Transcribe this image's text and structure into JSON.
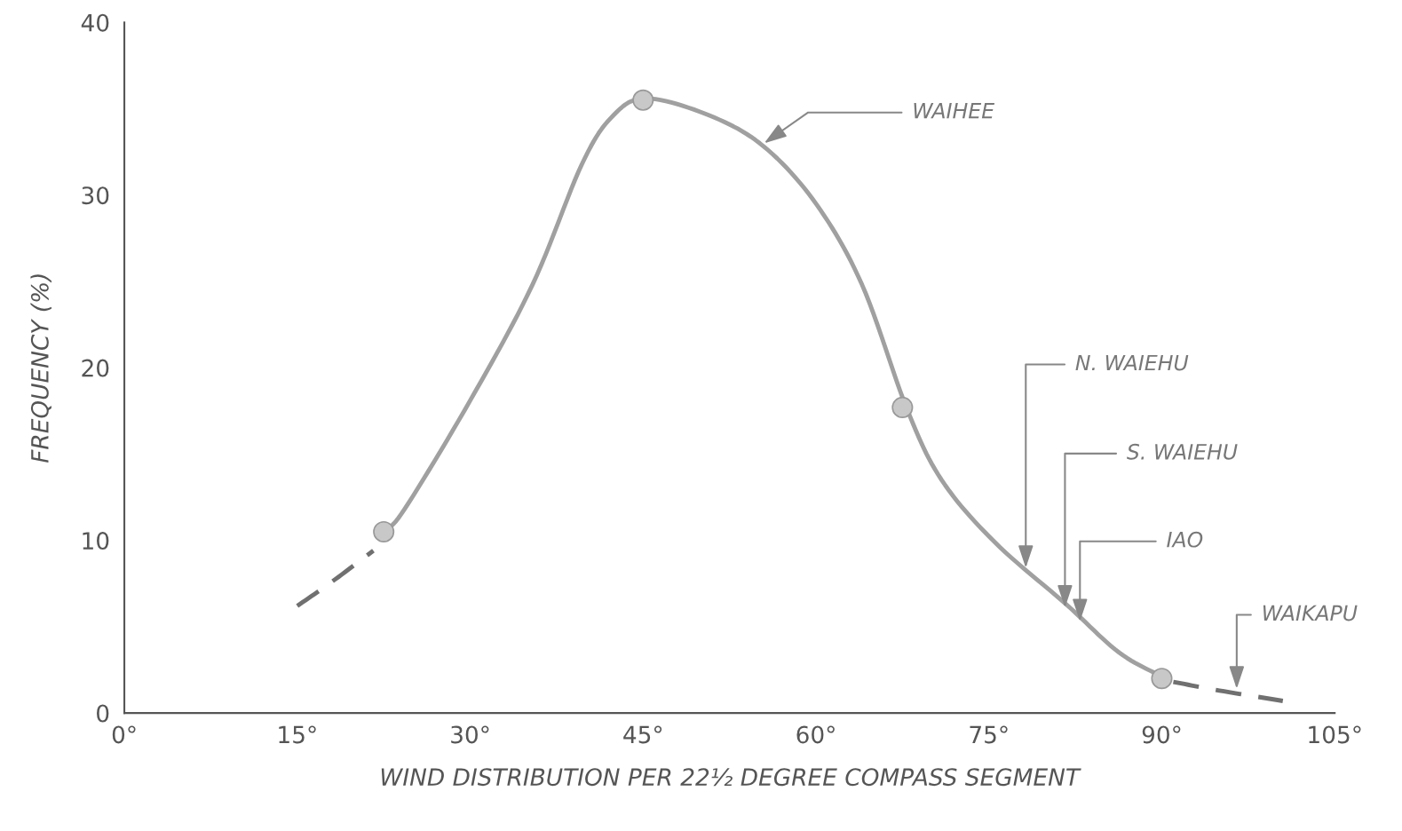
{
  "chart_data": {
    "type": "line",
    "xlabel": "WIND DISTRIBUTION PER 22½ DEGREE COMPASS SEGMENT",
    "ylabel": "FREQUENCY (%)",
    "xlim": [
      0,
      105
    ],
    "xticks": [
      {
        "value": 0,
        "label": "0°"
      },
      {
        "value": 15,
        "label": "15°"
      },
      {
        "value": 30,
        "label": "30°"
      },
      {
        "value": 45,
        "label": "45°"
      },
      {
        "value": 60,
        "label": "60°"
      },
      {
        "value": 75,
        "label": "75°"
      },
      {
        "value": 90,
        "label": "90°"
      },
      {
        "value": 105,
        "label": "105°"
      }
    ],
    "ylim": [
      0,
      40
    ],
    "yticks": [
      0,
      10,
      20,
      30,
      40
    ],
    "grid": false,
    "legend": false,
    "series": [
      {
        "color": "#a0a0a0",
        "line_style": "solid",
        "marker": "none",
        "x": [
          22.5,
          24.3,
          30,
          35.4,
          39.7,
          42.4,
          45.3,
          50.8,
          55.5,
          60,
          64,
          67.9,
          70.9,
          75.5,
          81.7,
          86.3,
          90.3
        ],
        "values": [
          10.5,
          11.8,
          18.1,
          24.8,
          31.8,
          34.6,
          35.6,
          34.6,
          32.8,
          29.5,
          24.8,
          17.6,
          13.5,
          9.9,
          6.3,
          3.5,
          2.0
        ]
      },
      {
        "color": "#707070",
        "line_style": "dashed",
        "marker": "none",
        "x": [
          15,
          18,
          21.6
        ],
        "values": [
          6.2,
          7.6,
          9.4
        ]
      },
      {
        "color": "#707070",
        "line_style": "dashed",
        "marker": "none",
        "x": [
          91,
          95,
          100.5
        ],
        "values": [
          1.8,
          1.3,
          0.7
        ]
      },
      {
        "type": "scatter",
        "color": "#c8c8c8",
        "marker": "circle",
        "x": [
          22.5,
          45,
          67.5,
          90
        ],
        "values": [
          10.5,
          35.5,
          17.7,
          2.0
        ]
      }
    ],
    "annotations": [
      {
        "text": "WAIHEE",
        "x": 55.5,
        "y": 33
      },
      {
        "text": "N. WAIEHU",
        "x": 78.2,
        "y": 8.4
      },
      {
        "text": "S. WAIEHU",
        "x": 81.6,
        "y": 6.1
      },
      {
        "text": "IAO",
        "x": 82.9,
        "y": 5.3
      },
      {
        "text": "WAIKAPU",
        "x": 96.5,
        "y": 1.4
      }
    ]
  }
}
